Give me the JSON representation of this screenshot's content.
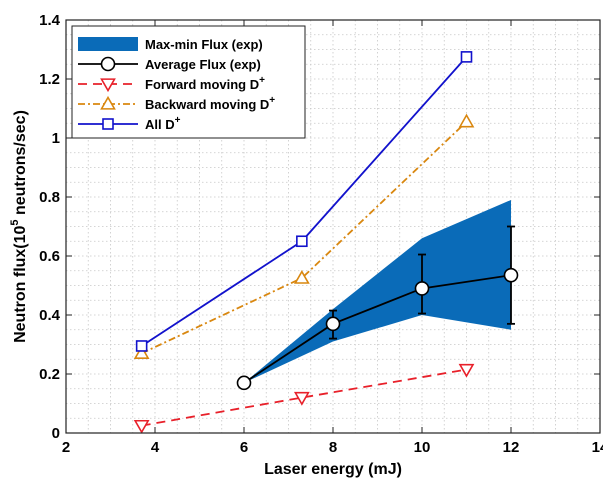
{
  "chart_data": {
    "type": "line",
    "title": "",
    "xlabel": "Laser energy (mJ)",
    "ylabel": "Neutron flux(10",
    "ylabel_sup": "5",
    "ylabel_rest": " neutrons/sec)",
    "xlim": [
      2,
      14
    ],
    "ylim": [
      0,
      1.4
    ],
    "x_ticks": [
      2,
      4,
      6,
      8,
      10,
      12,
      14
    ],
    "y_ticks": [
      0,
      0.2,
      0.4,
      0.6,
      0.8,
      1,
      1.2,
      1.4
    ],
    "x_tick_labels": [
      "2",
      "4",
      "6",
      "8",
      "10",
      "12",
      "14"
    ],
    "y_tick_labels": [
      "0",
      "0.2",
      "0.4",
      "0.6",
      "0.8",
      "1",
      "1.2",
      "1.4"
    ],
    "grid": true,
    "legend_placement": "top-left",
    "band": {
      "name": "Max-min Flux (exp)",
      "color": "#0a6bb8",
      "x": [
        6,
        8,
        10,
        12
      ],
      "upper": [
        0.17,
        0.42,
        0.66,
        0.79
      ],
      "lower": [
        0.17,
        0.31,
        0.4,
        0.35
      ]
    },
    "series": [
      {
        "name": "Average Flux (exp)",
        "color": "#000000",
        "marker": "circle",
        "dash": "",
        "x": [
          6,
          8,
          10,
          12
        ],
        "y": [
          0.17,
          0.37,
          0.49,
          0.535
        ],
        "err_low": [
          0.17,
          0.32,
          0.405,
          0.37
        ],
        "err_high": [
          0.17,
          0.415,
          0.605,
          0.7
        ]
      },
      {
        "name": "Forward moving D",
        "name_sup": "+",
        "color": "#e8202a",
        "marker": "triangle-down",
        "dash": "9 6",
        "x": [
          3.7,
          7.3,
          11
        ],
        "y": [
          0.025,
          0.12,
          0.215
        ]
      },
      {
        "name": "Backward moving D",
        "name_sup": "+",
        "color": "#d9870f",
        "marker": "triangle-up",
        "dash": "7 3 2 3",
        "x": [
          3.7,
          7.3,
          11
        ],
        "y": [
          0.27,
          0.525,
          1.055
        ]
      },
      {
        "name": "All D",
        "name_sup": "+",
        "color": "#1212cc",
        "marker": "square",
        "dash": "",
        "x": [
          3.7,
          7.3,
          11
        ],
        "y": [
          0.295,
          0.65,
          1.275
        ]
      }
    ]
  }
}
